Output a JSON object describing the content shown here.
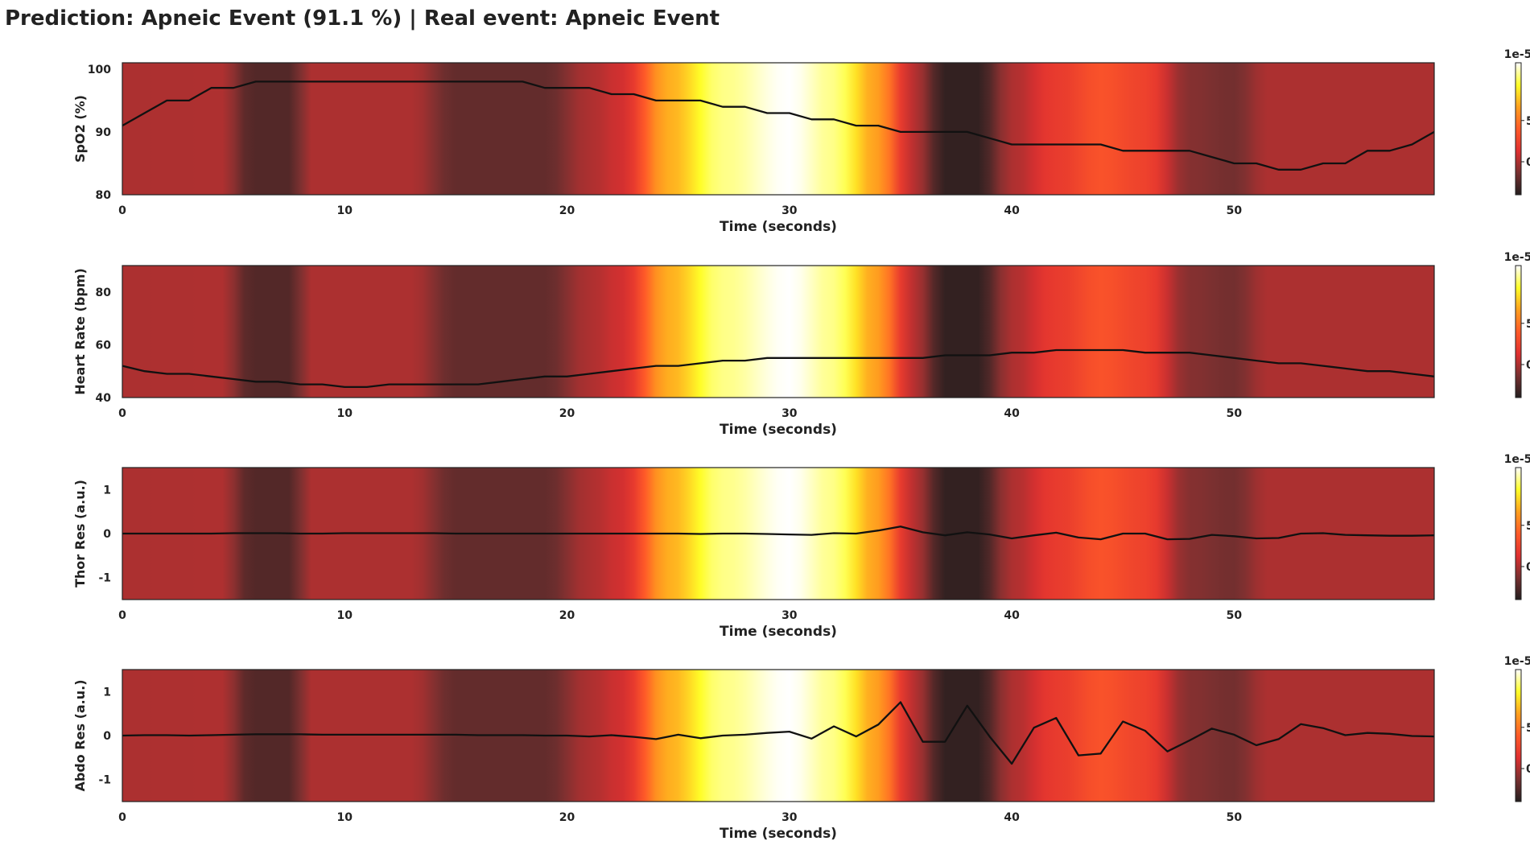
{
  "title": "Prediction: Apneic Event (91.1 %) | Real event: Apneic Event",
  "heatmap": {
    "scale_label": "1e-5",
    "colorbar_ticks": [
      0,
      5
    ],
    "colorbar_range": [
      -4,
      12
    ],
    "colormap": [
      "#231e1e",
      "#783030",
      "#e03030",
      "#ff5a28",
      "#ffa01e",
      "#ffff28",
      "#ffffff"
    ],
    "profile": [
      [
        0,
        0.0
      ],
      [
        4.5,
        0.05
      ],
      [
        5.8,
        -2.5
      ],
      [
        7.5,
        -2.5
      ],
      [
        8.5,
        0.0
      ],
      [
        13,
        0.0
      ],
      [
        15,
        -2.0
      ],
      [
        19,
        -2.0
      ],
      [
        21,
        0.0
      ],
      [
        22.5,
        1.0
      ],
      [
        24.5,
        7.0
      ],
      [
        27,
        10.5
      ],
      [
        30,
        12.0
      ],
      [
        32,
        10.5
      ],
      [
        34,
        6.5
      ],
      [
        35.5,
        0.5
      ],
      [
        37,
        -3.5
      ],
      [
        38.5,
        -3.5
      ],
      [
        40,
        0.0
      ],
      [
        42,
        2.0
      ],
      [
        44,
        3.5
      ],
      [
        46,
        2.5
      ],
      [
        48,
        -1.0
      ],
      [
        50,
        -1.5
      ],
      [
        51.5,
        0.0
      ],
      [
        59,
        0.0
      ]
    ]
  },
  "chart_data": [
    {
      "type": "line",
      "ylabel": "SpO2 (%)",
      "xlabel": "Time (seconds)",
      "xlim": [
        0,
        59
      ],
      "ylim": [
        80,
        101
      ],
      "xticks": [
        0,
        10,
        20,
        30,
        40,
        50
      ],
      "yticks": [
        80,
        90,
        100
      ],
      "x": [
        0,
        1,
        2,
        3,
        4,
        5,
        6,
        7,
        8,
        9,
        10,
        11,
        12,
        13,
        14,
        15,
        16,
        17,
        18,
        19,
        20,
        21,
        22,
        23,
        24,
        25,
        26,
        27,
        28,
        29,
        30,
        31,
        32,
        33,
        34,
        35,
        36,
        37,
        38,
        39,
        40,
        41,
        42,
        43,
        44,
        45,
        46,
        47,
        48,
        49,
        50,
        51,
        52,
        53,
        54,
        55,
        56,
        57,
        58,
        59
      ],
      "y": [
        91,
        93,
        95,
        95,
        97,
        97,
        98,
        98,
        98,
        98,
        98,
        98,
        98,
        98,
        98,
        98,
        98,
        98,
        98,
        97,
        97,
        97,
        96,
        96,
        95,
        95,
        95,
        94,
        94,
        93,
        93,
        92,
        92,
        91,
        91,
        90,
        90,
        90,
        90,
        89,
        88,
        88,
        88,
        88,
        88,
        87,
        87,
        87,
        87,
        86,
        85,
        85,
        84,
        84,
        85,
        85,
        87,
        87,
        88,
        90
      ]
    },
    {
      "type": "line",
      "ylabel": "Heart Rate (bpm)",
      "xlabel": "Time (seconds)",
      "xlim": [
        0,
        59
      ],
      "ylim": [
        40,
        90
      ],
      "xticks": [
        0,
        10,
        20,
        30,
        40,
        50
      ],
      "yticks": [
        40,
        60,
        80
      ],
      "x": [
        0,
        1,
        2,
        3,
        4,
        5,
        6,
        7,
        8,
        9,
        10,
        11,
        12,
        13,
        14,
        15,
        16,
        17,
        18,
        19,
        20,
        21,
        22,
        23,
        24,
        25,
        26,
        27,
        28,
        29,
        30,
        31,
        32,
        33,
        34,
        35,
        36,
        37,
        38,
        39,
        40,
        41,
        42,
        43,
        44,
        45,
        46,
        47,
        48,
        49,
        50,
        51,
        52,
        53,
        54,
        55,
        56,
        57,
        58,
        59
      ],
      "y": [
        52,
        50,
        49,
        49,
        48,
        47,
        46,
        46,
        45,
        45,
        44,
        44,
        45,
        45,
        45,
        45,
        45,
        46,
        47,
        48,
        48,
        49,
        50,
        51,
        52,
        52,
        53,
        54,
        54,
        55,
        55,
        55,
        55,
        55,
        55,
        55,
        55,
        56,
        56,
        56,
        57,
        57,
        58,
        58,
        58,
        58,
        57,
        57,
        57,
        56,
        55,
        54,
        53,
        53,
        52,
        51,
        50,
        50,
        49,
        48
      ]
    },
    {
      "type": "line",
      "ylabel": "Thor Res (a.u.)",
      "xlabel": "Time (seconds)",
      "xlim": [
        0,
        59
      ],
      "ylim": [
        -1.5,
        1.5
      ],
      "xticks": [
        0,
        10,
        20,
        30,
        40,
        50
      ],
      "yticks": [
        -1,
        0,
        1
      ],
      "x": [
        0,
        1,
        2,
        3,
        4,
        5,
        6,
        7,
        8,
        9,
        10,
        11,
        12,
        13,
        14,
        15,
        16,
        17,
        18,
        19,
        20,
        21,
        22,
        23,
        24,
        25,
        26,
        27,
        28,
        29,
        30,
        31,
        32,
        33,
        34,
        35,
        36,
        37,
        38,
        39,
        40,
        41,
        42,
        43,
        44,
        45,
        46,
        47,
        48,
        49,
        50,
        51,
        52,
        53,
        54,
        55,
        56,
        57,
        58,
        59
      ],
      "y": [
        0,
        0,
        0,
        0,
        0,
        0.01,
        0.01,
        0.01,
        0,
        0,
        0.01,
        0.01,
        0.01,
        0.01,
        0.01,
        0,
        0,
        0,
        0,
        0,
        0,
        0,
        0,
        0,
        0,
        0,
        -0.01,
        0,
        0,
        -0.01,
        -0.02,
        -0.03,
        0.01,
        0,
        0.07,
        0.16,
        0.03,
        -0.04,
        0.03,
        -0.02,
        -0.11,
        -0.04,
        0.02,
        -0.09,
        -0.13,
        0,
        0,
        -0.13,
        -0.12,
        -0.03,
        -0.06,
        -0.11,
        -0.1,
        0,
        0.01,
        -0.03,
        -0.04,
        -0.05,
        -0.05,
        -0.04
      ]
    },
    {
      "type": "line",
      "ylabel": "Abdo Res (a.u.)",
      "xlabel": "Time (seconds)",
      "xlim": [
        0,
        59
      ],
      "ylim": [
        -1.5,
        1.5
      ],
      "xticks": [
        0,
        10,
        20,
        30,
        40,
        50
      ],
      "yticks": [
        -1,
        0,
        1
      ],
      "x": [
        0,
        1,
        2,
        3,
        4,
        5,
        6,
        7,
        8,
        9,
        10,
        11,
        12,
        13,
        14,
        15,
        16,
        17,
        18,
        19,
        20,
        21,
        22,
        23,
        24,
        25,
        26,
        27,
        28,
        29,
        30,
        31,
        32,
        33,
        34,
        35,
        36,
        37,
        38,
        39,
        40,
        41,
        42,
        43,
        44,
        45,
        46,
        47,
        48,
        49,
        50,
        51,
        52,
        53,
        54,
        55,
        56,
        57,
        58,
        59
      ],
      "y": [
        0,
        0.01,
        0.01,
        0,
        0.01,
        0.02,
        0.03,
        0.03,
        0.03,
        0.02,
        0.02,
        0.02,
        0.02,
        0.02,
        0.02,
        0.02,
        0.01,
        0.01,
        0.01,
        0,
        0,
        -0.02,
        0.01,
        -0.03,
        -0.08,
        0.02,
        -0.06,
        0,
        0.02,
        0.06,
        0.09,
        -0.07,
        0.21,
        -0.02,
        0.25,
        0.76,
        -0.14,
        -0.14,
        0.68,
        -0.02,
        -0.64,
        0.18,
        0.4,
        -0.45,
        -0.41,
        0.32,
        0.11,
        -0.36,
        -0.11,
        0.16,
        0.02,
        -0.22,
        -0.08,
        0.26,
        0.17,
        0.01,
        0.06,
        0.04,
        -0.01,
        -0.02
      ]
    }
  ]
}
